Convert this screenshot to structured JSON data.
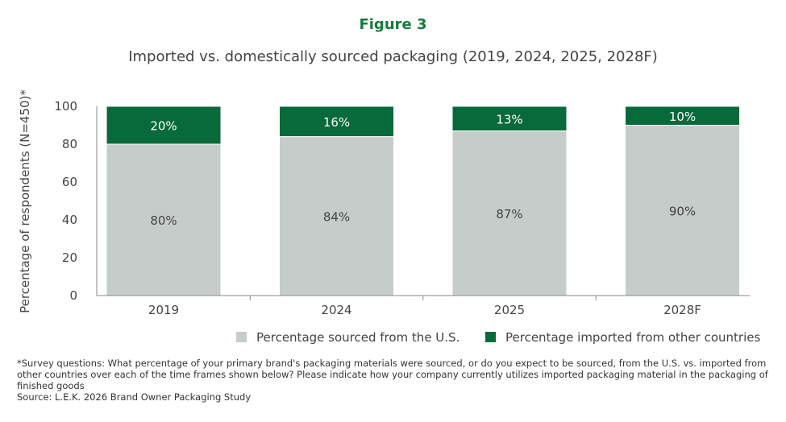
{
  "figure_label": "Figure 3",
  "chart_data": {
    "type": "bar",
    "stacked": true,
    "title": "Imported vs. domestically sourced packaging (2019, 2024, 2025, 2028F)",
    "xlabel": "",
    "ylabel": "Percentage of respondents (N=450)*",
    "ylim": [
      0,
      100
    ],
    "yticks": [
      0,
      20,
      40,
      60,
      80,
      100
    ],
    "categories": [
      "2019",
      "2024",
      "2025",
      "2028F"
    ],
    "series": [
      {
        "name": "Percentage sourced from the U.S.",
        "values": [
          80,
          84,
          87,
          90
        ],
        "labels": [
          "80%",
          "84%",
          "87%",
          "90%"
        ],
        "color": "#c6ccc9"
      },
      {
        "name": "Percentage imported from other countries",
        "values": [
          20,
          16,
          13,
          10
        ],
        "labels": [
          "20%",
          "16%",
          "13%",
          "10%"
        ],
        "color": "#086a3b"
      }
    ],
    "grid": false,
    "legend": "bottom-right"
  },
  "footnote": "*Survey questions: What percentage of your primary brand's packaging materials were sourced, or do you expect to be sourced, from the U.S. vs. imported from other countries over each of the time frames shown below? Please indicate how your company currently utilizes imported packaging material in the packaging of finished goods",
  "source": "Source: L.E.K. 2026 Brand Owner Packaging Study"
}
